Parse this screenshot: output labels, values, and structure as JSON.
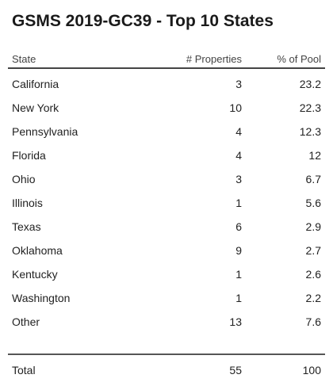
{
  "title": "GSMS 2019-GC39 - Top 10 States",
  "columns": {
    "state": "State",
    "properties": "# Properties",
    "pool": "% of Pool"
  },
  "rows": [
    {
      "state": "California",
      "properties": "3",
      "pool": "23.2"
    },
    {
      "state": "New York",
      "properties": "10",
      "pool": "22.3"
    },
    {
      "state": "Pennsylvania",
      "properties": "4",
      "pool": "12.3"
    },
    {
      "state": "Florida",
      "properties": "4",
      "pool": "12"
    },
    {
      "state": "Ohio",
      "properties": "3",
      "pool": "6.7"
    },
    {
      "state": "Illinois",
      "properties": "1",
      "pool": "5.6"
    },
    {
      "state": "Texas",
      "properties": "6",
      "pool": "2.9"
    },
    {
      "state": "Oklahoma",
      "properties": "9",
      "pool": "2.7"
    },
    {
      "state": "Kentucky",
      "properties": "1",
      "pool": "2.6"
    },
    {
      "state": "Washington",
      "properties": "1",
      "pool": "2.2"
    },
    {
      "state": "Other",
      "properties": "13",
      "pool": "7.6"
    }
  ],
  "total": {
    "state": "Total",
    "properties": "55",
    "pool": "100"
  }
}
